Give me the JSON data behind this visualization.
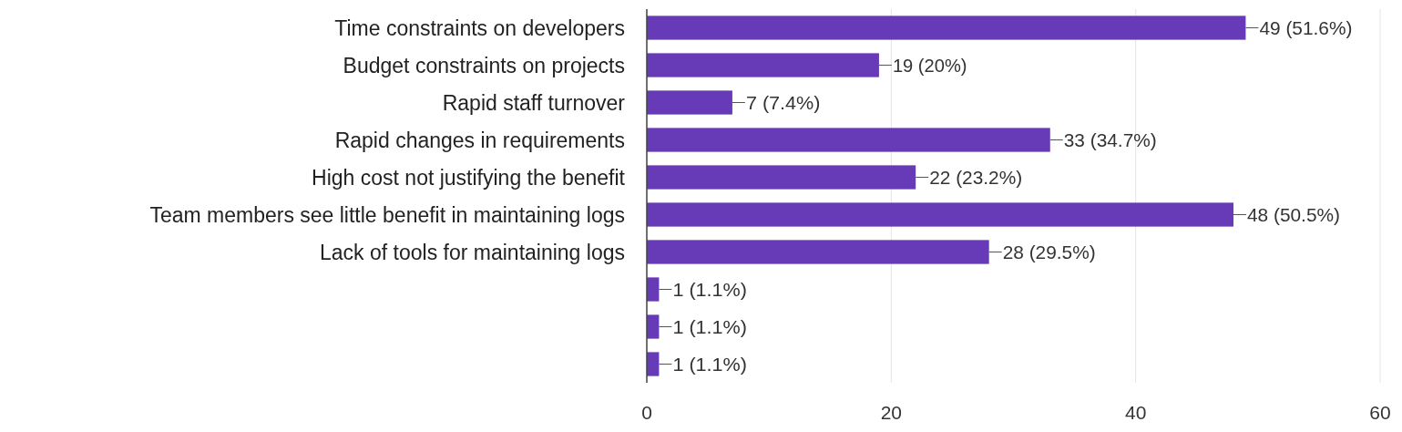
{
  "chart_data": {
    "type": "bar",
    "orientation": "horizontal",
    "categories": [
      "Time constraints on developers",
      "Budget constraints on projects",
      "Rapid staff turnover",
      "Rapid changes in requirements",
      "High cost not justifying the benefit",
      "Team members see little benefit in maintaining logs",
      "Lack of tools for maintaining logs",
      null,
      null,
      null
    ],
    "values": [
      49,
      19,
      7,
      33,
      22,
      48,
      28,
      1,
      1,
      1
    ],
    "value_labels": [
      "49 (51.6%)",
      "19 (20%)",
      "7 (7.4%)",
      "33 (34.7%)",
      "22 (23.2%)",
      "48 (50.5%)",
      "28 (29.5%)",
      "1 (1.1%)",
      "1 (1.1%)",
      "1 (1.1%)"
    ],
    "color": "#673ab7",
    "xlim": [
      0,
      60
    ],
    "xticks": [
      0,
      20,
      40,
      60
    ],
    "grid": "x"
  }
}
